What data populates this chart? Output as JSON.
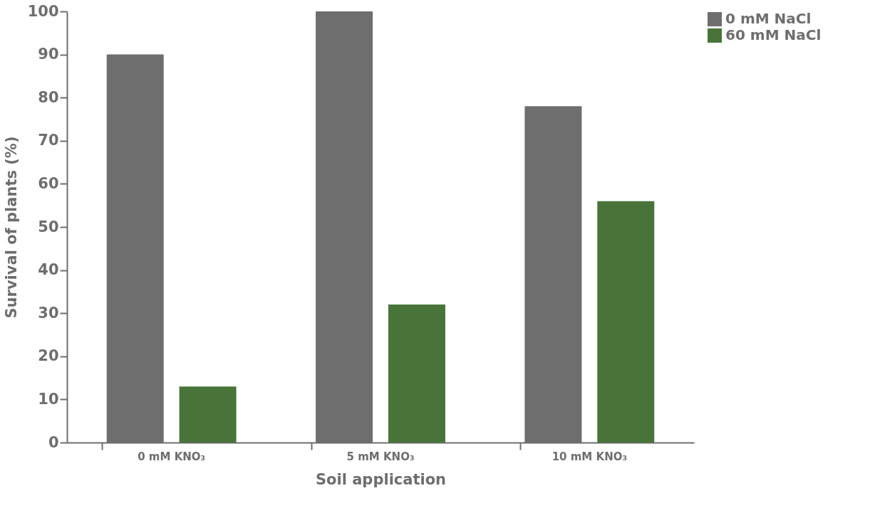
{
  "chart_data": {
    "type": "bar",
    "xlabel": "Soil application",
    "ylabel": "Survival of plants (%)",
    "categories": [
      "0 mM KNO₃",
      "5 mM KNO₃",
      "10 mM KNO₃"
    ],
    "series": [
      {
        "name": "0 mM NaCl",
        "color": "#6d6e6d",
        "values": [
          90,
          100,
          78
        ]
      },
      {
        "name": "60 mM NaCl",
        "color": "#48743a",
        "values": [
          13,
          32,
          56
        ]
      }
    ],
    "ylim": [
      0,
      100
    ],
    "yticks": [
      0,
      10,
      20,
      30,
      40,
      50,
      60,
      70,
      80,
      90,
      100
    ],
    "grid": false,
    "legend": "right"
  }
}
